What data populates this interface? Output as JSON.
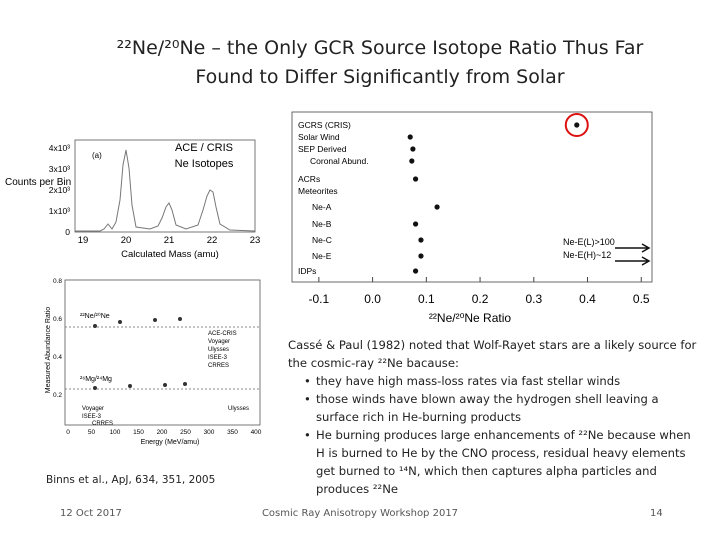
{
  "title": [
    "²²Ne/²⁰Ne – the Only GCR Source Isotope Ratio Thus Far",
    "Found to Differ Significantly from Solar"
  ],
  "mass_figure": {
    "panel": "(a)",
    "annotation": [
      "ACE / CRIS",
      "Ne Isotopes"
    ],
    "y_label": "Counts per Bin",
    "x_label": "Calculated Mass (amu)",
    "yticks": [
      "4x10³",
      "3x10³",
      "2x10³",
      "1x10³",
      "0"
    ],
    "xticks": [
      "19",
      "20",
      "21",
      "22",
      "23"
    ]
  },
  "ratio_figure": {
    "type": "scatter",
    "categories": [
      "GCRS (CRIS)",
      "Solar Wind",
      "SEP Derived",
      "Coronal Abund.",
      "ACRs",
      "Meteorites",
      "Ne-A",
      "Ne-B",
      "Ne-C",
      "Ne-E",
      "IDPs"
    ],
    "values": [
      0.38,
      0.07,
      0.075,
      0.073,
      0.08,
      null,
      0.12,
      0.08,
      0.09,
      0.09,
      0.08
    ],
    "xlim": [
      -0.15,
      0.52
    ],
    "xticks": [
      -0.1,
      {
        "value": 0,
        "label": "0.0"
      },
      0.1,
      0.2,
      0.3,
      0.4,
      0.5
    ],
    "x_label": "²²Ne/²⁰Ne Ratio",
    "lower_limits": [
      "Ne-E(L)>100",
      "Ne-E(H)~12"
    ]
  },
  "energy_figure": {
    "y_label": "Measured Abundance Ratio",
    "x_label": "Energy (MeV/amu)",
    "yticks": [
      "0.8",
      "0.6",
      "0.4",
      "0.2"
    ],
    "xticks": [
      "0",
      "50",
      "100",
      "150",
      "200",
      "250",
      "300",
      "350",
      "400"
    ],
    "ratio_labels": [
      "²²Ne/²⁰Ne",
      "²⁶Mg/²⁴Mg"
    ],
    "legend": [
      "ACE-CRIS",
      "Voyager",
      "Ulysses",
      "ISEE-3",
      "CRRES"
    ],
    "mission_labels": [
      "Voyager",
      "Ulysses",
      "ISEE-3",
      "CRRES"
    ]
  },
  "citation": "Binns et al., ApJ, 634, 351, 2005",
  "body": {
    "intro": "Cassé & Paul (1982) noted that Wolf-Rayet stars are a likely source for the cosmic-ray ²²Ne bacause:",
    "bullets": [
      "they have high mass-loss rates via fast stellar winds",
      "those winds have blown away the hydrogen shell leaving a surface rich in He-burning products",
      "He burning produces large enhancements of ²²Ne because when H is burned to He by the CNO process, residual heavy elements get burned to ¹⁴N, which then captures alpha particles and produces ²²Ne"
    ]
  },
  "footer": {
    "date": "12 Oct 2017",
    "event": "Cosmic Ray Anisotropy Workshop 2017",
    "page": "14"
  }
}
